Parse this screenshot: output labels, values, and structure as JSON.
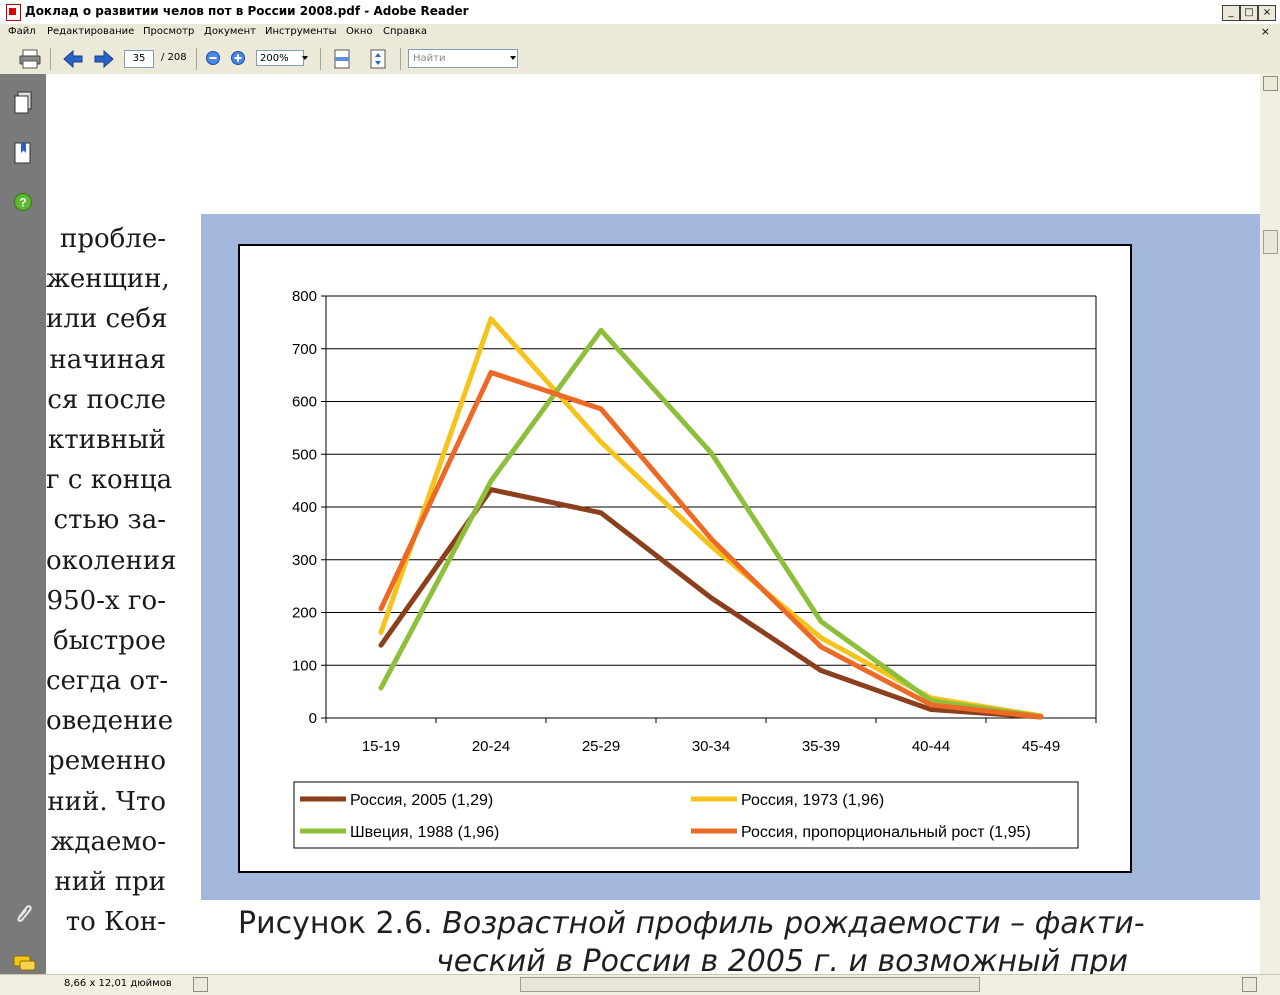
{
  "window": {
    "title": "Доклад о развитии челов пот в России 2008.pdf - Adobe Reader"
  },
  "menu": [
    "Файл",
    "Редактирование",
    "Просмотр",
    "Документ",
    "Инструменты",
    "Окно",
    "Справка"
  ],
  "toolbar": {
    "page_current": "35",
    "page_total": "/ 208",
    "zoom": "200%",
    "search_placeholder": "Найти"
  },
  "status": {
    "page_size": "8,66 x 12,01 дюймов"
  },
  "body_text": [
    "пробле-",
    "женщин,",
    "или себя",
    "начиная",
    "ся после",
    "ктивный",
    "г с конца",
    "стью за-",
    "околения",
    "950-х го-",
    "быстрое",
    "сегда от-",
    "оведение",
    "ременно",
    "ний. Что",
    "ждаемо-",
    "ний при",
    "то Кон-"
  ],
  "caption": {
    "label": "Рисунок 2.6.",
    "title_line1": "Возрастной профиль рождаемости – факти-",
    "title_line2": "ческий в России в 2005 г. и возможный при"
  },
  "chart_data": {
    "type": "line",
    "categories": [
      "15-19",
      "20-24",
      "25-29",
      "30-34",
      "35-39",
      "40-44",
      "45-49"
    ],
    "ylim": [
      0,
      800
    ],
    "yticks": [
      "0",
      "100",
      "200",
      "300",
      "400",
      "500",
      "600",
      "700",
      "800"
    ],
    "grid": true,
    "legend_position": "bottom",
    "series": [
      {
        "name": "Россия, 2005 (1,29)",
        "color": "#8b3f1c",
        "values": [
          138,
          433,
          389,
          228,
          90,
          16,
          2
        ]
      },
      {
        "name": "Россия, 1973 (1,96)",
        "color": "#f6c21c",
        "values": [
          162,
          757,
          523,
          326,
          152,
          38,
          4
        ]
      },
      {
        "name": "Швеция, 1988 (1,96)",
        "color": "#8ebf3a",
        "values": [
          57,
          449,
          735,
          503,
          183,
          33,
          3
        ]
      },
      {
        "name": "Россия, пропорциональный рост (1,95)",
        "color": "#ec6a25",
        "values": [
          207,
          655,
          586,
          340,
          135,
          25,
          2
        ]
      }
    ]
  }
}
